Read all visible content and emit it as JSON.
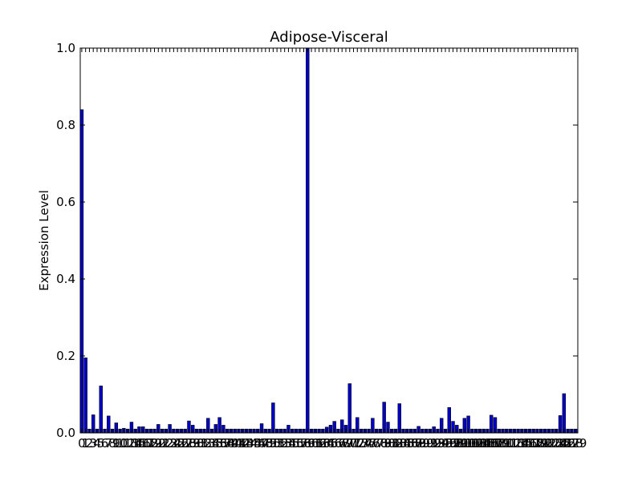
{
  "chart_data": {
    "type": "bar",
    "title": "Adipose-Visceral",
    "xlabel": "",
    "ylabel": "Expression Level",
    "ylim": [
      0,
      1.0
    ],
    "xlim": [
      0,
      130
    ],
    "grid": false,
    "y_ticks": [
      "0.0",
      "0.2",
      "0.4",
      "0.6",
      "0.8",
      "1.0"
    ],
    "x_tick_labels_visible": [
      "0",
      "1",
      "2",
      "3",
      "4",
      "5",
      "6",
      "7",
      "8",
      "9",
      "10",
      "11",
      "12",
      "13",
      "14",
      "15",
      "16",
      "17",
      "18",
      "19",
      "20",
      "21",
      "22",
      "23",
      "24",
      "25",
      "26",
      "27",
      "28",
      "29",
      "30",
      "31",
      "32",
      "33",
      "34",
      "35",
      "36",
      "37",
      "38",
      "39",
      "40",
      "41",
      "42",
      "43",
      "44",
      "45",
      "46",
      "47",
      "48",
      "49",
      "50",
      "51",
      "52",
      "53",
      "54",
      "55",
      "56",
      "57",
      "58",
      "59",
      "60",
      "61",
      "62",
      "63",
      "64",
      "65",
      "66",
      "67",
      "68",
      "69",
      "70",
      "71",
      "72",
      "73",
      "74",
      "75",
      "76",
      "77",
      "78",
      "79",
      "80",
      "81",
      "82",
      "83",
      "84",
      "85",
      "86",
      "87",
      "88",
      "89",
      "90",
      "91",
      "92",
      "93",
      "94",
      "95",
      "96",
      "97",
      "98",
      "99",
      "100",
      "101",
      "102",
      "103",
      "104",
      "105",
      "106",
      "107",
      "108",
      "109",
      "110",
      "111",
      "112",
      "113",
      "114",
      "115",
      "116",
      "117",
      "118",
      "119",
      "120",
      "121",
      "122",
      "123",
      "124",
      "125",
      "126",
      "127",
      "128",
      "129"
    ],
    "bar_color": "#0000cc",
    "values": [
      0.84,
      0.195,
      0.01,
      0.047,
      0.01,
      0.122,
      0.01,
      0.044,
      0.01,
      0.026,
      0.01,
      0.012,
      0.01,
      0.028,
      0.01,
      0.016,
      0.016,
      0.01,
      0.01,
      0.01,
      0.022,
      0.01,
      0.01,
      0.022,
      0.01,
      0.01,
      0.01,
      0.01,
      0.031,
      0.02,
      0.01,
      0.01,
      0.01,
      0.038,
      0.01,
      0.022,
      0.04,
      0.02,
      0.01,
      0.01,
      0.01,
      0.01,
      0.01,
      0.01,
      0.01,
      0.01,
      0.01,
      0.024,
      0.01,
      0.01,
      0.078,
      0.01,
      0.01,
      0.01,
      0.02,
      0.01,
      0.01,
      0.01,
      0.01,
      1.0,
      0.01,
      0.01,
      0.01,
      0.01,
      0.015,
      0.02,
      0.03,
      0.01,
      0.034,
      0.02,
      0.128,
      0.01,
      0.04,
      0.01,
      0.01,
      0.01,
      0.038,
      0.01,
      0.01,
      0.08,
      0.028,
      0.01,
      0.01,
      0.076,
      0.01,
      0.01,
      0.01,
      0.01,
      0.017,
      0.01,
      0.01,
      0.01,
      0.016,
      0.01,
      0.038,
      0.01,
      0.066,
      0.03,
      0.02,
      0.01,
      0.038,
      0.044,
      0.01,
      0.01,
      0.01,
      0.01,
      0.01,
      0.046,
      0.04,
      0.01,
      0.01,
      0.01,
      0.01,
      0.01,
      0.01,
      0.01,
      0.01,
      0.01,
      0.01,
      0.01,
      0.01,
      0.01,
      0.01,
      0.01,
      0.01,
      0.045,
      0.102,
      0.01,
      0.01,
      0.01
    ]
  }
}
